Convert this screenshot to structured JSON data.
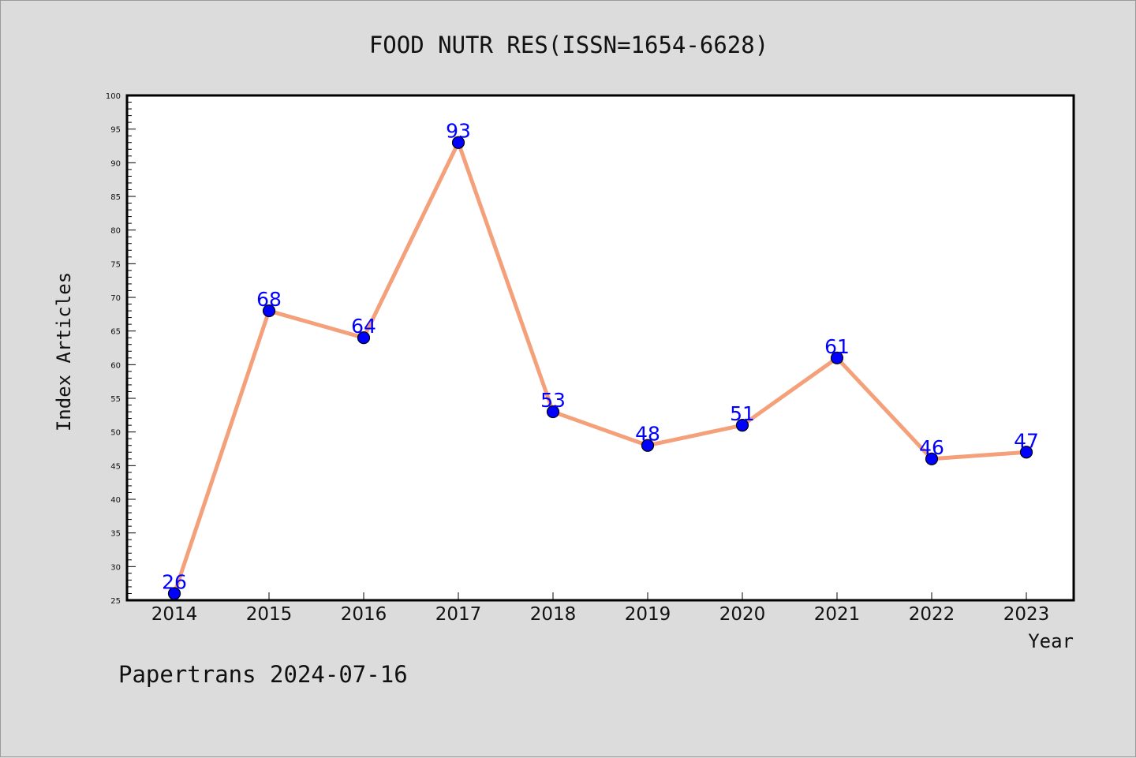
{
  "chart_data": {
    "type": "line",
    "title": "FOOD NUTR RES(ISSN=1654-6628)",
    "xlabel": "Year",
    "ylabel": "Index Articles",
    "categories": [
      "2014",
      "2015",
      "2016",
      "2017",
      "2018",
      "2019",
      "2020",
      "2021",
      "2022",
      "2023"
    ],
    "values": [
      26,
      68,
      64,
      93,
      53,
      48,
      51,
      61,
      46,
      47
    ],
    "data_labels": [
      "26",
      "68",
      "64",
      "93",
      "53",
      "48",
      "51",
      "61",
      "46",
      "47"
    ],
    "ylim": [
      25,
      100
    ],
    "yticks": [
      "25",
      "30",
      "35",
      "40",
      "45",
      "50",
      "55",
      "60",
      "65",
      "70",
      "75",
      "80",
      "85",
      "90",
      "95",
      "100"
    ],
    "y_minor_step": 1,
    "grid": false,
    "legend": "none",
    "colors": {
      "line": "#f4a07a",
      "marker": "#0000ff",
      "marker_outline": "#000000",
      "data_label": "#0000ff",
      "plot_background": "#ffffff",
      "page_background": "#dcdcdc"
    }
  },
  "footer": {
    "watermark": "Papertrans 2024-07-16"
  }
}
